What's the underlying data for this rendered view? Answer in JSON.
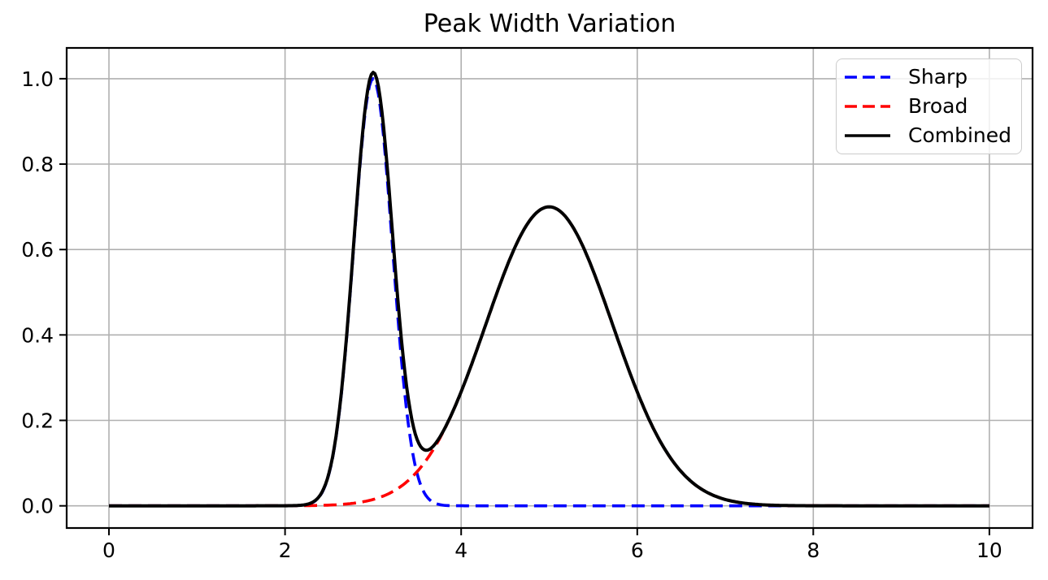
{
  "figure": {
    "background": "#ffffff",
    "kind": "line-chart"
  },
  "chart_data": {
    "type": "line",
    "title": "Peak Width Variation",
    "xlabel": "",
    "ylabel": "",
    "xlim": [
      -0.48,
      10.49
    ],
    "ylim": [
      -0.052,
      1.072
    ],
    "x_range": [
      0,
      10
    ],
    "x_ticks": [
      0,
      2,
      4,
      6,
      8,
      10
    ],
    "x_tick_labels": [
      "0",
      "2",
      "4",
      "6",
      "8",
      "10"
    ],
    "y_ticks": [
      0.0,
      0.2,
      0.4,
      0.6,
      0.8,
      1.0
    ],
    "y_tick_labels": [
      "0.0",
      "0.2",
      "0.4",
      "0.6",
      "0.8",
      "1.0"
    ],
    "grid": true,
    "grid_color": "#b0b0b0",
    "axes_color": "#000000",
    "tick_label_color": "#000000",
    "legend": {
      "position": "upper right",
      "border_color": "#cccccc",
      "background": "rgba(255,255,255,0.8)",
      "entries": [
        "Sharp",
        "Broad",
        "Combined"
      ]
    },
    "sample_x": [
      0,
      0.25,
      0.5,
      0.75,
      1,
      1.25,
      1.5,
      1.75,
      2,
      2.25,
      2.5,
      2.75,
      3,
      3.25,
      3.5,
      3.75,
      4,
      4.25,
      4.5,
      4.75,
      5,
      5.25,
      5.5,
      5.75,
      6,
      6.25,
      6.5,
      6.75,
      7,
      7.25,
      7.5,
      7.75,
      8,
      8.25,
      8.5,
      8.75,
      9,
      9.25,
      9.5,
      9.75,
      10
    ],
    "series": [
      {
        "name": "Sharp",
        "color": "#0000ff",
        "line_style": "dashed",
        "line_width": 3.6,
        "model": {
          "type": "gaussian",
          "amplitude": 1.0,
          "center": 3.0,
          "sigma": 0.22
        },
        "sample_y": [
          0,
          0,
          0,
          0,
          0,
          0,
          0,
          0,
          0,
          0.003,
          0.0756,
          0.5243,
          1,
          0.5243,
          0.0756,
          0.003,
          0,
          0,
          0,
          0,
          0,
          0,
          0,
          0,
          0,
          0,
          0,
          0,
          0,
          0,
          0,
          0,
          0,
          0,
          0,
          0,
          0,
          0,
          0,
          0,
          0
        ]
      },
      {
        "name": "Broad",
        "color": "#ff0000",
        "line_style": "dashed",
        "line_width": 3.6,
        "model": {
          "type": "gaussian",
          "amplitude": 0.7,
          "center": 5.0,
          "sigma": 0.72
        },
        "sample_y": [
          0,
          0,
          0,
          0,
          0,
          0,
          0,
          0,
          0.0001,
          0.0005,
          0.0017,
          0.0053,
          0.0148,
          0.0365,
          0.0799,
          0.1551,
          0.2668,
          0.4069,
          0.5501,
          0.659,
          0.7,
          0.659,
          0.5501,
          0.4069,
          0.2668,
          0.1551,
          0.0799,
          0.0365,
          0.0148,
          0.0053,
          0.0017,
          0.0005,
          0.0001,
          0,
          0,
          0,
          0,
          0,
          0,
          0,
          0
        ]
      },
      {
        "name": "Combined",
        "color": "#000000",
        "line_style": "solid",
        "line_width": 4,
        "model": {
          "type": "sum",
          "components": [
            0,
            1
          ]
        },
        "sample_y": [
          0,
          0,
          0,
          0,
          0,
          0,
          0,
          0,
          0.0001,
          0.0035,
          0.0773,
          0.5296,
          1.0148,
          0.5608,
          0.1555,
          0.1581,
          0.2668,
          0.4069,
          0.5501,
          0.659,
          0.7,
          0.659,
          0.5501,
          0.4069,
          0.2668,
          0.1551,
          0.0799,
          0.0365,
          0.0148,
          0.0053,
          0.0017,
          0.0005,
          0.0001,
          0,
          0,
          0,
          0,
          0,
          0,
          0,
          0
        ]
      }
    ]
  }
}
